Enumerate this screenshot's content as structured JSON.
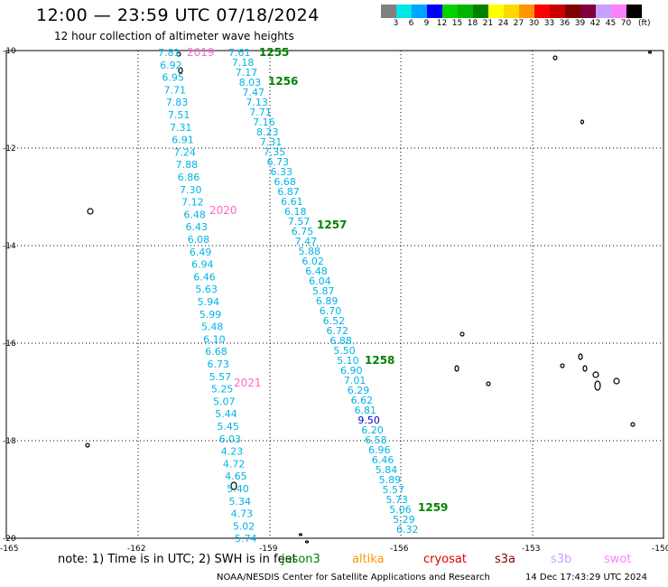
{
  "title": "12:00 — 23:59 UTC 07/18/2024",
  "subtitle": "12 hour collection of altimeter wave heights",
  "colorbar": {
    "colors": [
      "#808080",
      "#00e5e5",
      "#00a5ff",
      "#0000ff",
      "#00d200",
      "#00b400",
      "#008200",
      "#ffff00",
      "#ffd700",
      "#ff9600",
      "#ff0000",
      "#c80000",
      "#800000",
      "#800040",
      "#c8a0ff",
      "#ff80ff",
      "#000000"
    ],
    "labels": [
      "3",
      "6",
      "9",
      "12",
      "15",
      "18",
      "21",
      "24",
      "27",
      "30",
      "33",
      "36",
      "39",
      "42",
      "45",
      "70"
    ],
    "unit": "(ft)"
  },
  "axes": {
    "lat_labels": [
      "-10",
      "-12",
      "-14",
      "-16",
      "-18",
      "-20"
    ],
    "lon_labels": [
      "-165",
      "-162",
      "-159",
      "-156",
      "-153",
      "-150"
    ]
  },
  "tracks": {
    "track_a": {
      "color": "#00b4e6",
      "values": [
        "7.81",
        "6.92",
        "6.95",
        "7.71",
        "7.83",
        "7.51",
        "7.31",
        "6.91",
        "7.24",
        "7.88",
        "6.86",
        "7.30",
        "7.12",
        "6.48",
        "6.43",
        "6.08",
        "6.49",
        "6.94",
        "6.46",
        "5.63",
        "5.94",
        "5.99",
        "5.48",
        "6.10",
        "6.68",
        "6.73",
        "5.57",
        "5.25",
        "5.07",
        "5.44",
        "5.45",
        "6.03",
        "4.23",
        "4.72",
        "4.65",
        "5.40",
        "5.34",
        "4.73",
        "5.02",
        "5.74"
      ]
    },
    "track_b": {
      "color": "#00b4e6",
      "values": [
        "7.61",
        "7.18",
        "7.17",
        "8.03",
        "7.47",
        "7.13",
        "7.71",
        "7.16",
        "8.23",
        "7.31",
        "7.35",
        "6.73",
        "6.33",
        "6.68",
        "6.87",
        "6.61",
        "6.18",
        "7.57",
        "6.75",
        "7.47",
        "5.88",
        "6.02",
        "6.48",
        "6.04",
        "5.87",
        "6.89",
        "6.70",
        "6.52",
        "6.72",
        "6.88",
        "5.50",
        "5.10",
        "6.90",
        "7.01",
        "6.29",
        "6.62",
        "6.81",
        "9.50",
        "6.20",
        "6.58",
        "6.96",
        "6.46",
        "5.84",
        "5.89",
        "5.57",
        "5.73",
        "5.06",
        "5.29",
        "6.32"
      ]
    },
    "track_b_highlight": {
      "index": 37,
      "color": "#0000cd"
    },
    "time_labels_pink": [
      "2019",
      "2020",
      "2021"
    ],
    "time_labels_green": [
      "1255",
      "1256",
      "1257",
      "1258",
      "1259"
    ]
  },
  "note": "note: 1) Time is in UTC; 2) SWH is in feet",
  "satellites": [
    {
      "name": "jason3",
      "color": "#008200"
    },
    {
      "name": "altika",
      "color": "#ff9600"
    },
    {
      "name": "cryosat",
      "color": "#e00000"
    },
    {
      "name": "s3a",
      "color": "#800000"
    },
    {
      "name": "s3b",
      "color": "#c8a0ff"
    },
    {
      "name": "swot",
      "color": "#ff80ff"
    }
  ],
  "credit": "NOAA/NESDIS Center for Satellite Applications and Research",
  "timestamp": "14 Dec 17:43:29 UTC 2024"
}
